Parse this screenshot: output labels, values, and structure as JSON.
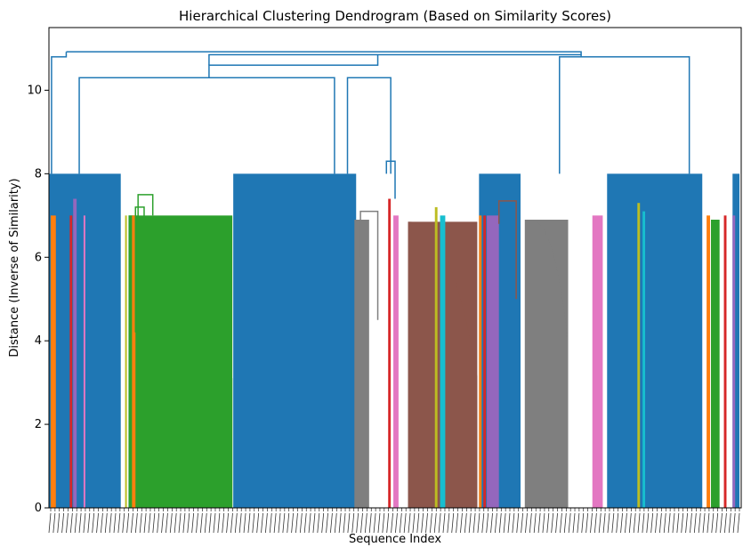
{
  "chart_data": {
    "type": "dendrogram",
    "title": "Hierarchical Clustering Dendrogram (Based on Similarity Scores)",
    "xlabel": "Sequence Index",
    "ylabel": "Distance (Inverse of Similarity)",
    "ylim": [
      0,
      11.5
    ],
    "yticks": [
      0,
      2,
      4,
      6,
      8,
      10
    ],
    "x_tick_labels": "dense, illegible leaf index labels",
    "grid": false,
    "leaf_count_approx": 800,
    "color_threshold": 8.0,
    "above_threshold_color": "#1f77b4",
    "colors": {
      "blue": "#1f77b4",
      "orange": "#ff7f0e",
      "green": "#2ca02c",
      "red": "#d62728",
      "purple": "#9467bd",
      "brown": "#8c564b",
      "pink": "#e377c2",
      "gray": "#7f7f7f",
      "olive": "#bcbd22",
      "cyan": "#17becf"
    },
    "top_merges": [
      {
        "height": 10.92,
        "between": "left group and right group"
      },
      {
        "height": 10.85,
        "between": "middle group and right-center group"
      },
      {
        "height": 10.8,
        "between": "center-right and far-right group"
      },
      {
        "height": 10.6,
        "between": "left-center cluster and center cluster"
      },
      {
        "height": 10.3,
        "between": "green mega-cluster group and center-left group"
      },
      {
        "height": 10.3,
        "between": "cyan group and brown group"
      }
    ],
    "solid_blocks": [
      {
        "color": "#1f77b4",
        "x": [
          0.5,
          83
        ],
        "height": 8.0
      },
      {
        "color": "#1f77b4",
        "x": [
          213,
          355
        ],
        "height": 8.0
      },
      {
        "color": "#1f77b4",
        "x": [
          497,
          545
        ],
        "height": 8.0
      },
      {
        "color": "#1f77b4",
        "x": [
          645,
          755
        ],
        "height": 8.0
      },
      {
        "color": "#1f77b4",
        "x": [
          790,
          798
        ],
        "height": 8.0
      },
      {
        "color": "#2ca02c",
        "x": [
          92,
          212
        ],
        "height": 7.0
      },
      {
        "color": "#8c564b",
        "x": [
          415,
          495
        ],
        "height": 6.85
      },
      {
        "color": "#7f7f7f",
        "x": [
          550,
          600
        ],
        "height": 6.9
      },
      {
        "color": "#7f7f7f",
        "x": [
          353,
          370
        ],
        "height": 6.9
      }
    ],
    "thin_clusters": [
      {
        "color": "#ff7f0e",
        "x": 2,
        "width": 6,
        "height": 7.0
      },
      {
        "color": "#d62728",
        "x": 24,
        "width": 3,
        "height": 7.0
      },
      {
        "color": "#9467bd",
        "x": 28,
        "width": 4,
        "height": 7.4
      },
      {
        "color": "#e377c2",
        "x": 40,
        "width": 2,
        "height": 7.0
      },
      {
        "color": "#bcbd22",
        "x": 88,
        "width": 2,
        "height": 7.0
      },
      {
        "color": "#ff7f0e",
        "x": 96,
        "width": 4,
        "height": 7.0
      },
      {
        "color": "#d62728",
        "x": 392,
        "width": 3,
        "height": 7.4
      },
      {
        "color": "#e377c2",
        "x": 398,
        "width": 6,
        "height": 7.0
      },
      {
        "color": "#17becf",
        "x": 452,
        "width": 6,
        "height": 7.0
      },
      {
        "color": "#bcbd22",
        "x": 446,
        "width": 3,
        "height": 7.2
      },
      {
        "color": "#ff7f0e",
        "x": 497,
        "width": 3,
        "height": 7.0
      },
      {
        "color": "#d62728",
        "x": 502,
        "width": 3,
        "height": 7.0
      },
      {
        "color": "#9467bd",
        "x": 506,
        "width": 14,
        "height": 7.0
      },
      {
        "color": "#e377c2",
        "x": 628,
        "width": 12,
        "height": 7.0
      },
      {
        "color": "#bcbd22",
        "x": 680,
        "width": 3,
        "height": 7.3
      },
      {
        "color": "#17becf",
        "x": 686,
        "width": 3,
        "height": 7.1
      },
      {
        "color": "#ff7f0e",
        "x": 760,
        "width": 4,
        "height": 7.0
      },
      {
        "color": "#2ca02c",
        "x": 765,
        "width": 10,
        "height": 6.9
      },
      {
        "color": "#d62728",
        "x": 780,
        "width": 3,
        "height": 7.0
      },
      {
        "color": "#9467bd",
        "x": 790,
        "width": 3,
        "height": 7.0
      }
    ]
  }
}
